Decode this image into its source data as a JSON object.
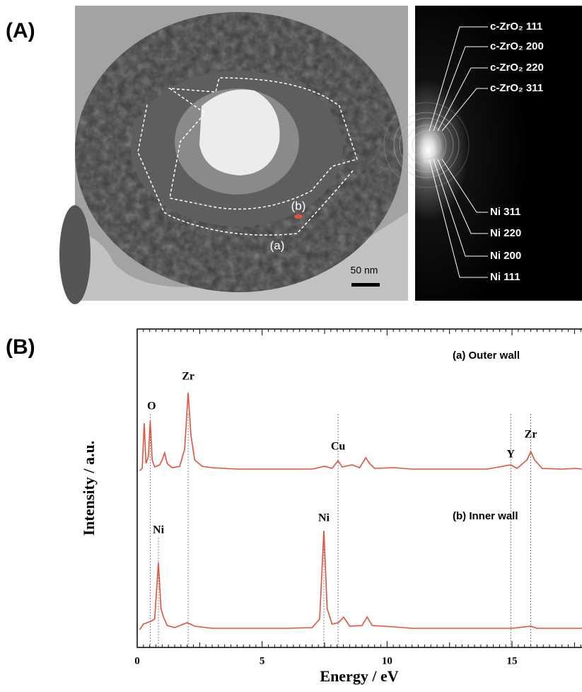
{
  "panel_a": {
    "label": "(A)",
    "tem_image": {
      "scale_bar": "50 nm",
      "region_labels": [
        "(a)",
        "(b)"
      ]
    },
    "diffraction": {
      "labels": [
        "c-ZrO₂ 111",
        "c-ZrO₂ 200",
        "c-ZrO₂ 220",
        "c-ZrO₂ 311",
        "Ni 311",
        "Ni 220",
        "Ni 200",
        "Ni 111"
      ]
    }
  },
  "chart_data": {
    "type": "line",
    "panel_label": "(B)",
    "x_label": "Energy / eV",
    "y_label": "Intensity / a.u.",
    "xlim": [
      0,
      17.8
    ],
    "xticks": [
      0,
      5,
      10,
      15
    ],
    "ylim": [
      0,
      150
    ],
    "series": [
      {
        "name": "(a) Outer wall",
        "color": "#e8503a",
        "x": [
          0.1,
          0.2,
          0.28,
          0.35,
          0.45,
          0.52,
          0.6,
          0.7,
          0.9,
          1.0,
          1.1,
          1.2,
          1.4,
          1.7,
          1.9,
          2.04,
          2.15,
          2.3,
          2.6,
          3,
          4,
          5,
          6,
          7,
          7.5,
          7.8,
          8.04,
          8.2,
          8.6,
          8.9,
          9.15,
          9.3,
          9.5,
          10.3,
          11,
          12,
          13,
          14,
          14.95,
          15.2,
          15.6,
          15.75,
          15.9,
          16.2,
          17,
          17.6,
          17.8
        ],
        "values": [
          0,
          3,
          67,
          10,
          20,
          70,
          15,
          5,
          8,
          15,
          25,
          10,
          4,
          6,
          30,
          110,
          50,
          15,
          6,
          4,
          2,
          2,
          2,
          2,
          6,
          3,
          14,
          5,
          8,
          4,
          18,
          10,
          3,
          4,
          2,
          2,
          2,
          2,
          8,
          3,
          15,
          27,
          15,
          3,
          2,
          3,
          2
        ]
      },
      {
        "name": "(b) Inner wall",
        "color": "#e8503a",
        "x": [
          0.1,
          0.25,
          0.4,
          0.55,
          0.7,
          0.85,
          0.95,
          1.05,
          1.2,
          1.5,
          2.0,
          2.3,
          3,
          4,
          5,
          6,
          7,
          7.3,
          7.47,
          7.6,
          7.8,
          8.05,
          8.26,
          8.5,
          9.0,
          9.2,
          9.4,
          10.3,
          11,
          12,
          14,
          15,
          15.75,
          16,
          17,
          17.8
        ],
        "values": [
          0,
          8,
          10,
          12,
          15,
          95,
          30,
          18,
          6,
          3,
          10,
          5,
          2,
          2,
          2,
          2,
          3,
          15,
          140,
          30,
          8,
          10,
          18,
          5,
          6,
          18,
          6,
          4,
          2,
          2,
          2,
          2,
          5,
          2,
          2,
          2
        ]
      }
    ],
    "annotations": [
      {
        "text": "O",
        "x": 0.52
      },
      {
        "text": "Zr",
        "x": 2.04
      },
      {
        "text": "Cu",
        "x": 8.04
      },
      {
        "text": "Y",
        "x": 14.95
      },
      {
        "text": "Zr",
        "x": 15.75
      },
      {
        "text": "Ni",
        "x": 0.85
      },
      {
        "text": "Ni",
        "x": 7.47
      }
    ]
  }
}
